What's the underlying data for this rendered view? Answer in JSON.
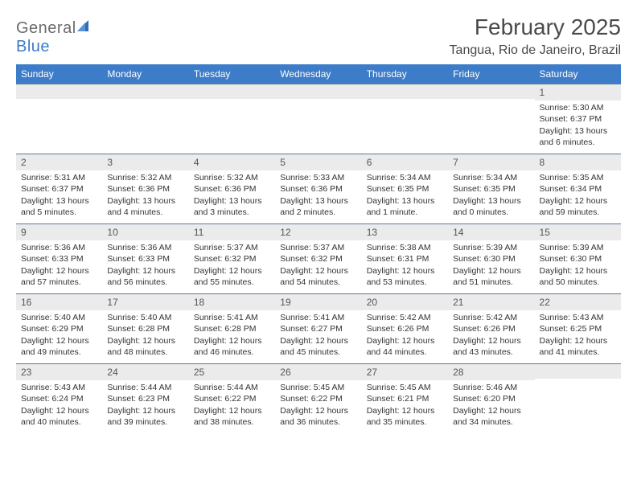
{
  "brand": {
    "name_gray": "General",
    "name_blue": "Blue"
  },
  "title": "February 2025",
  "location": "Tangua, Rio de Janeiro, Brazil",
  "header_bg": "#3d7cc9",
  "header_text": "#ffffff",
  "daynum_bg": "#ebebeb",
  "divider_color": "#5a7a9a",
  "text_color": "#333333",
  "fontsize_title": 28,
  "fontsize_location": 16,
  "fontsize_weekday": 12,
  "fontsize_body": 10.5,
  "weekdays": [
    "Sunday",
    "Monday",
    "Tuesday",
    "Wednesday",
    "Thursday",
    "Friday",
    "Saturday"
  ],
  "weeks": [
    [
      null,
      null,
      null,
      null,
      null,
      null,
      {
        "n": "1",
        "sr": "Sunrise: 5:30 AM",
        "ss": "Sunset: 6:37 PM",
        "dl": "Daylight: 13 hours and 6 minutes."
      }
    ],
    [
      {
        "n": "2",
        "sr": "Sunrise: 5:31 AM",
        "ss": "Sunset: 6:37 PM",
        "dl": "Daylight: 13 hours and 5 minutes."
      },
      {
        "n": "3",
        "sr": "Sunrise: 5:32 AM",
        "ss": "Sunset: 6:36 PM",
        "dl": "Daylight: 13 hours and 4 minutes."
      },
      {
        "n": "4",
        "sr": "Sunrise: 5:32 AM",
        "ss": "Sunset: 6:36 PM",
        "dl": "Daylight: 13 hours and 3 minutes."
      },
      {
        "n": "5",
        "sr": "Sunrise: 5:33 AM",
        "ss": "Sunset: 6:36 PM",
        "dl": "Daylight: 13 hours and 2 minutes."
      },
      {
        "n": "6",
        "sr": "Sunrise: 5:34 AM",
        "ss": "Sunset: 6:35 PM",
        "dl": "Daylight: 13 hours and 1 minute."
      },
      {
        "n": "7",
        "sr": "Sunrise: 5:34 AM",
        "ss": "Sunset: 6:35 PM",
        "dl": "Daylight: 13 hours and 0 minutes."
      },
      {
        "n": "8",
        "sr": "Sunrise: 5:35 AM",
        "ss": "Sunset: 6:34 PM",
        "dl": "Daylight: 12 hours and 59 minutes."
      }
    ],
    [
      {
        "n": "9",
        "sr": "Sunrise: 5:36 AM",
        "ss": "Sunset: 6:33 PM",
        "dl": "Daylight: 12 hours and 57 minutes."
      },
      {
        "n": "10",
        "sr": "Sunrise: 5:36 AM",
        "ss": "Sunset: 6:33 PM",
        "dl": "Daylight: 12 hours and 56 minutes."
      },
      {
        "n": "11",
        "sr": "Sunrise: 5:37 AM",
        "ss": "Sunset: 6:32 PM",
        "dl": "Daylight: 12 hours and 55 minutes."
      },
      {
        "n": "12",
        "sr": "Sunrise: 5:37 AM",
        "ss": "Sunset: 6:32 PM",
        "dl": "Daylight: 12 hours and 54 minutes."
      },
      {
        "n": "13",
        "sr": "Sunrise: 5:38 AM",
        "ss": "Sunset: 6:31 PM",
        "dl": "Daylight: 12 hours and 53 minutes."
      },
      {
        "n": "14",
        "sr": "Sunrise: 5:39 AM",
        "ss": "Sunset: 6:30 PM",
        "dl": "Daylight: 12 hours and 51 minutes."
      },
      {
        "n": "15",
        "sr": "Sunrise: 5:39 AM",
        "ss": "Sunset: 6:30 PM",
        "dl": "Daylight: 12 hours and 50 minutes."
      }
    ],
    [
      {
        "n": "16",
        "sr": "Sunrise: 5:40 AM",
        "ss": "Sunset: 6:29 PM",
        "dl": "Daylight: 12 hours and 49 minutes."
      },
      {
        "n": "17",
        "sr": "Sunrise: 5:40 AM",
        "ss": "Sunset: 6:28 PM",
        "dl": "Daylight: 12 hours and 48 minutes."
      },
      {
        "n": "18",
        "sr": "Sunrise: 5:41 AM",
        "ss": "Sunset: 6:28 PM",
        "dl": "Daylight: 12 hours and 46 minutes."
      },
      {
        "n": "19",
        "sr": "Sunrise: 5:41 AM",
        "ss": "Sunset: 6:27 PM",
        "dl": "Daylight: 12 hours and 45 minutes."
      },
      {
        "n": "20",
        "sr": "Sunrise: 5:42 AM",
        "ss": "Sunset: 6:26 PM",
        "dl": "Daylight: 12 hours and 44 minutes."
      },
      {
        "n": "21",
        "sr": "Sunrise: 5:42 AM",
        "ss": "Sunset: 6:26 PM",
        "dl": "Daylight: 12 hours and 43 minutes."
      },
      {
        "n": "22",
        "sr": "Sunrise: 5:43 AM",
        "ss": "Sunset: 6:25 PM",
        "dl": "Daylight: 12 hours and 41 minutes."
      }
    ],
    [
      {
        "n": "23",
        "sr": "Sunrise: 5:43 AM",
        "ss": "Sunset: 6:24 PM",
        "dl": "Daylight: 12 hours and 40 minutes."
      },
      {
        "n": "24",
        "sr": "Sunrise: 5:44 AM",
        "ss": "Sunset: 6:23 PM",
        "dl": "Daylight: 12 hours and 39 minutes."
      },
      {
        "n": "25",
        "sr": "Sunrise: 5:44 AM",
        "ss": "Sunset: 6:22 PM",
        "dl": "Daylight: 12 hours and 38 minutes."
      },
      {
        "n": "26",
        "sr": "Sunrise: 5:45 AM",
        "ss": "Sunset: 6:22 PM",
        "dl": "Daylight: 12 hours and 36 minutes."
      },
      {
        "n": "27",
        "sr": "Sunrise: 5:45 AM",
        "ss": "Sunset: 6:21 PM",
        "dl": "Daylight: 12 hours and 35 minutes."
      },
      {
        "n": "28",
        "sr": "Sunrise: 5:46 AM",
        "ss": "Sunset: 6:20 PM",
        "dl": "Daylight: 12 hours and 34 minutes."
      },
      null
    ]
  ]
}
